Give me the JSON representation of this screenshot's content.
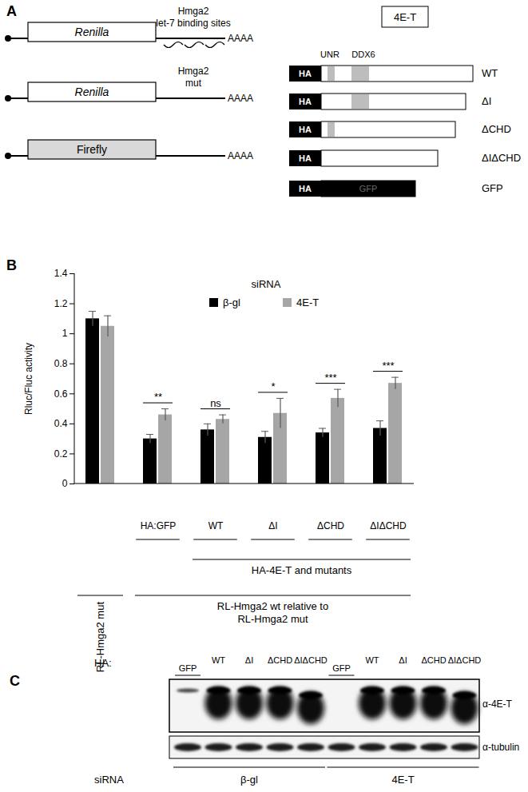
{
  "panel_a": {
    "label": "A",
    "reporters": [
      {
        "name": "Renilla",
        "utr_label": [
          "Hmga2",
          "let-7 binding sites"
        ],
        "poly_a": "AAAA"
      },
      {
        "name": "Renilla",
        "utr_label": [
          "Hmga2",
          "mut"
        ],
        "poly_a": "AAAA"
      },
      {
        "name": "Firefly",
        "poly_a": "AAAA"
      }
    ],
    "protein": {
      "title": "4E-T",
      "domains": [
        "UNR",
        "DDX6"
      ],
      "constructs": [
        {
          "tag": "HA",
          "name": "WT",
          "domains": [
            "UNR",
            "DDX6"
          ]
        },
        {
          "tag": "HA",
          "name": "ΔI",
          "domains": [
            "DDX6"
          ]
        },
        {
          "tag": "HA",
          "name": "ΔCHD",
          "domains": [
            "UNR"
          ]
        },
        {
          "tag": "HA",
          "name": "ΔIΔCHD",
          "domains": []
        },
        {
          "tag": "HA",
          "name": "GFP",
          "fusion": "GFP"
        }
      ]
    }
  },
  "chart_data": {
    "type": "bar",
    "panel_label": "B",
    "legend_title": "siRNA",
    "legend": "top",
    "y_label": "Rluc/Fluc activity",
    "categories": [
      null,
      "HA:GFP",
      "WT",
      "ΔI",
      "ΔCHD",
      "ΔIΔCHD"
    ],
    "series": [
      {
        "name": "β-gl",
        "color": "#000000",
        "values": [
          1.1,
          0.3,
          0.36,
          0.31,
          0.34,
          0.37
        ],
        "errors": [
          0.05,
          0.03,
          0.04,
          0.04,
          0.03,
          0.05
        ]
      },
      {
        "name": "4E-T",
        "color": "#a6a6a6",
        "values": [
          1.05,
          0.46,
          0.43,
          0.47,
          0.57,
          0.67
        ],
        "errors": [
          0.07,
          0.04,
          0.03,
          0.1,
          0.06,
          0.04
        ]
      }
    ],
    "significance": [
      null,
      "**",
      "ns",
      "*",
      "***",
      "***"
    ],
    "group_notes": [
      {
        "text": "HA-4E-T and mutants",
        "span": [
          2,
          5
        ]
      },
      {
        "text": "RL-Hmga2 mut",
        "span": [
          0,
          0
        ]
      },
      {
        "text": [
          "RL-Hmga2 wt relative to",
          "RL-Hmga2 mut"
        ],
        "span": [
          1,
          5
        ]
      }
    ],
    "ylim": [
      0,
      1.4
    ],
    "yticks": [
      0,
      0.2,
      0.4,
      0.6,
      0.8,
      1,
      1.2,
      1.4
    ],
    "grid": false
  },
  "panel_c": {
    "label": "C",
    "tag_label": "HA:",
    "lanes": [
      "GFP",
      "WT",
      "ΔI",
      "ΔCHD",
      "ΔIΔCHD",
      "GFP",
      "WT",
      "ΔI",
      "ΔCHD",
      "ΔIΔCHD"
    ],
    "blots": [
      "α-4E-T",
      "α-tubulin"
    ],
    "sirna_label": "siRNA",
    "sirna_groups": [
      "β-gl",
      "4E-T"
    ]
  }
}
